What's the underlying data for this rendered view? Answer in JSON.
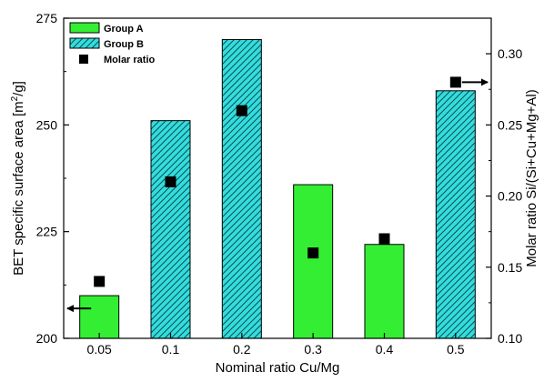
{
  "chart_data": {
    "type": "bar",
    "categories": [
      "0.05",
      "0.1",
      "0.2",
      "0.3",
      "0.4",
      "0.5"
    ],
    "bar_groups": [
      "Group A",
      "Group B",
      "Group B",
      "Group A",
      "Group A",
      "Group B"
    ],
    "series": [
      {
        "name": "Group A",
        "axis": "left",
        "kind": "bar",
        "color": "#33ee33",
        "pattern": "solid",
        "values": [
          210,
          null,
          null,
          236,
          222,
          null
        ]
      },
      {
        "name": "Group B",
        "axis": "left",
        "kind": "bar",
        "color": "#33dddd",
        "pattern": "diagonal-hatch",
        "values": [
          null,
          251,
          270,
          null,
          null,
          258
        ]
      },
      {
        "name": "Molar ratio",
        "axis": "right",
        "kind": "scatter",
        "marker": "square",
        "color": "#000000",
        "values": [
          0.14,
          0.21,
          0.26,
          0.16,
          0.17,
          0.28
        ]
      }
    ],
    "xlabel": "Nominal ratio Cu/Mg",
    "ylabel": {
      "main": "BET specific surface area [m",
      "sup": "2",
      "end": "/g]"
    },
    "y2label": "Molar ratio Si/(Si+Cu+Mg+Al)",
    "ylim": [
      200,
      275
    ],
    "y2lim": [
      0.1,
      0.325
    ],
    "yticks": [
      "200",
      "225",
      "250",
      "275"
    ],
    "y2ticks": [
      "0.10",
      "0.15",
      "0.20",
      "0.25",
      "0.30"
    ],
    "grid": false,
    "legend": {
      "position": "top-left",
      "entries": [
        "Group A",
        "Group B",
        "Molar ratio"
      ]
    },
    "annotations": [
      {
        "type": "arrow",
        "points_to": "left-axis",
        "anchor": "0.05"
      },
      {
        "type": "arrow",
        "points_to": "right-axis",
        "anchor": "0.5"
      }
    ]
  }
}
